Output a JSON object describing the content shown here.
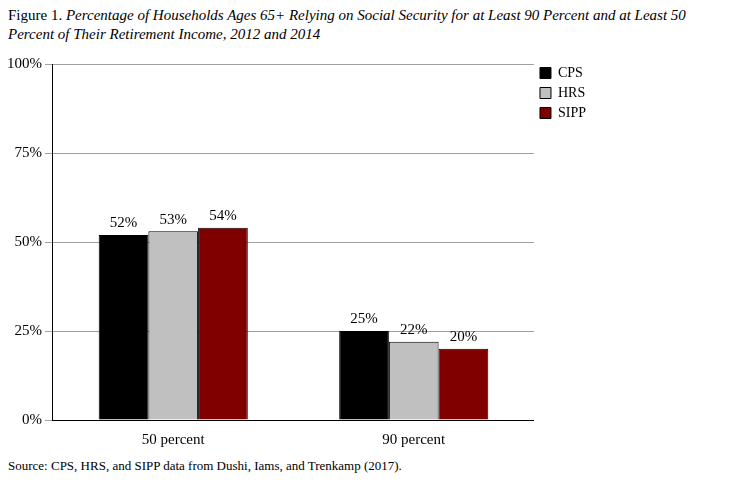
{
  "chart_data": {
    "type": "bar",
    "title": "Figure 1. Percentage of Households Ages 65+ Relying on Social Security for at Least 90 Percent and at Least 50 Percent of Their Retirement Income, 2012 and 2014",
    "source": "Source: CPS, HRS, and SIPP data from Dushi, Iams, and Trenkamp (2017).",
    "categories": [
      "50 percent",
      "90 percent"
    ],
    "series": [
      {
        "name": "CPS",
        "color": "#000000",
        "values": [
          52,
          25
        ],
        "value_labels": [
          "52%",
          "25%"
        ]
      },
      {
        "name": "HRS",
        "color": "#c0c0c0",
        "values": [
          53,
          22
        ],
        "value_labels": [
          "53%",
          "22%"
        ]
      },
      {
        "name": "SIPP",
        "color": "#800000",
        "values": [
          54,
          20
        ],
        "value_labels": [
          "54%",
          "20%"
        ]
      }
    ],
    "ylim": [
      0,
      100
    ],
    "yticks": [
      {
        "value": 0,
        "label": "0%"
      },
      {
        "value": 25,
        "label": "25%"
      },
      {
        "value": 50,
        "label": "50%"
      },
      {
        "value": 75,
        "label": "75%"
      },
      {
        "value": 100,
        "label": "100%"
      }
    ],
    "grid": true,
    "legend": "top-right",
    "data_labels": true
  }
}
